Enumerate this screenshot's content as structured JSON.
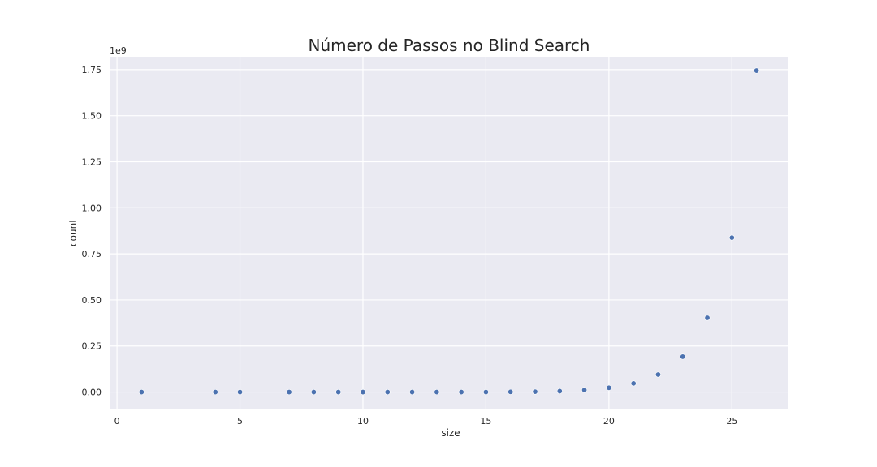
{
  "chart_data": {
    "type": "scatter",
    "title": "Número de Passos no Blind Search",
    "xlabel": "size",
    "ylabel": "count",
    "y_offset_label": "1e9",
    "xlim": [
      -0.3,
      27.3
    ],
    "ylim": [
      -0.09,
      1.82
    ],
    "x_ticks": [
      0,
      5,
      10,
      15,
      20,
      25
    ],
    "y_ticks": [
      0.0,
      0.25,
      0.5,
      0.75,
      1.0,
      1.25,
      1.5,
      1.75
    ],
    "y_tick_labels": [
      "0.00",
      "0.25",
      "0.50",
      "0.75",
      "1.00",
      "1.25",
      "1.50",
      "1.75"
    ],
    "grid": true,
    "colors": {
      "background": "#eaeaf2",
      "grid": "#ffffff",
      "point": "#4c72b0"
    },
    "points": [
      {
        "x": 1,
        "y": 0.0
      },
      {
        "x": 4,
        "y": 0.0
      },
      {
        "x": 5,
        "y": 0.0
      },
      {
        "x": 7,
        "y": 0.0
      },
      {
        "x": 8,
        "y": 0.0
      },
      {
        "x": 9,
        "y": 0.0
      },
      {
        "x": 10,
        "y": 0.0
      },
      {
        "x": 11,
        "y": 0.0
      },
      {
        "x": 12,
        "y": 0.0
      },
      {
        "x": 13,
        "y": 0.0
      },
      {
        "x": 14,
        "y": 0.0
      },
      {
        "x": 15,
        "y": 0.0
      },
      {
        "x": 16,
        "y": 0.001
      },
      {
        "x": 17,
        "y": 0.002
      },
      {
        "x": 18,
        "y": 0.005
      },
      {
        "x": 19,
        "y": 0.011
      },
      {
        "x": 20,
        "y": 0.023
      },
      {
        "x": 21,
        "y": 0.047
      },
      {
        "x": 22,
        "y": 0.095
      },
      {
        "x": 23,
        "y": 0.192
      },
      {
        "x": 24,
        "y": 0.403
      },
      {
        "x": 25,
        "y": 0.838
      },
      {
        "x": 26,
        "y": 1.745
      }
    ]
  }
}
